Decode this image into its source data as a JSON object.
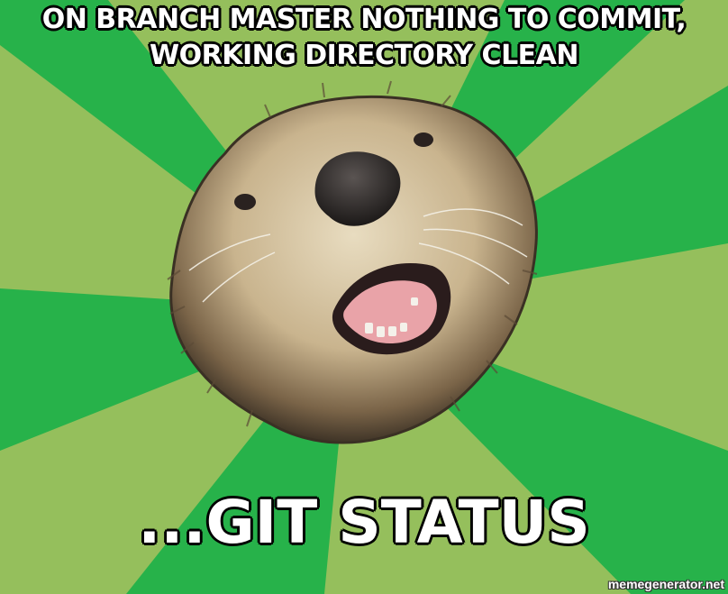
{
  "meme": {
    "top_text": "ON BRANCH MASTER NOTHING TO COMMIT, WORKING DIRECTORY CLEAN",
    "bottom_text": "...GIT STATUS",
    "watermark": "memegenerator.net"
  },
  "colors": {
    "ray_dark_green": "#27b24a",
    "ray_light_green": "#95bf5c",
    "caption_text": "#ffffff",
    "caption_outline": "#000000"
  },
  "image": {
    "subject": "otter-face"
  }
}
